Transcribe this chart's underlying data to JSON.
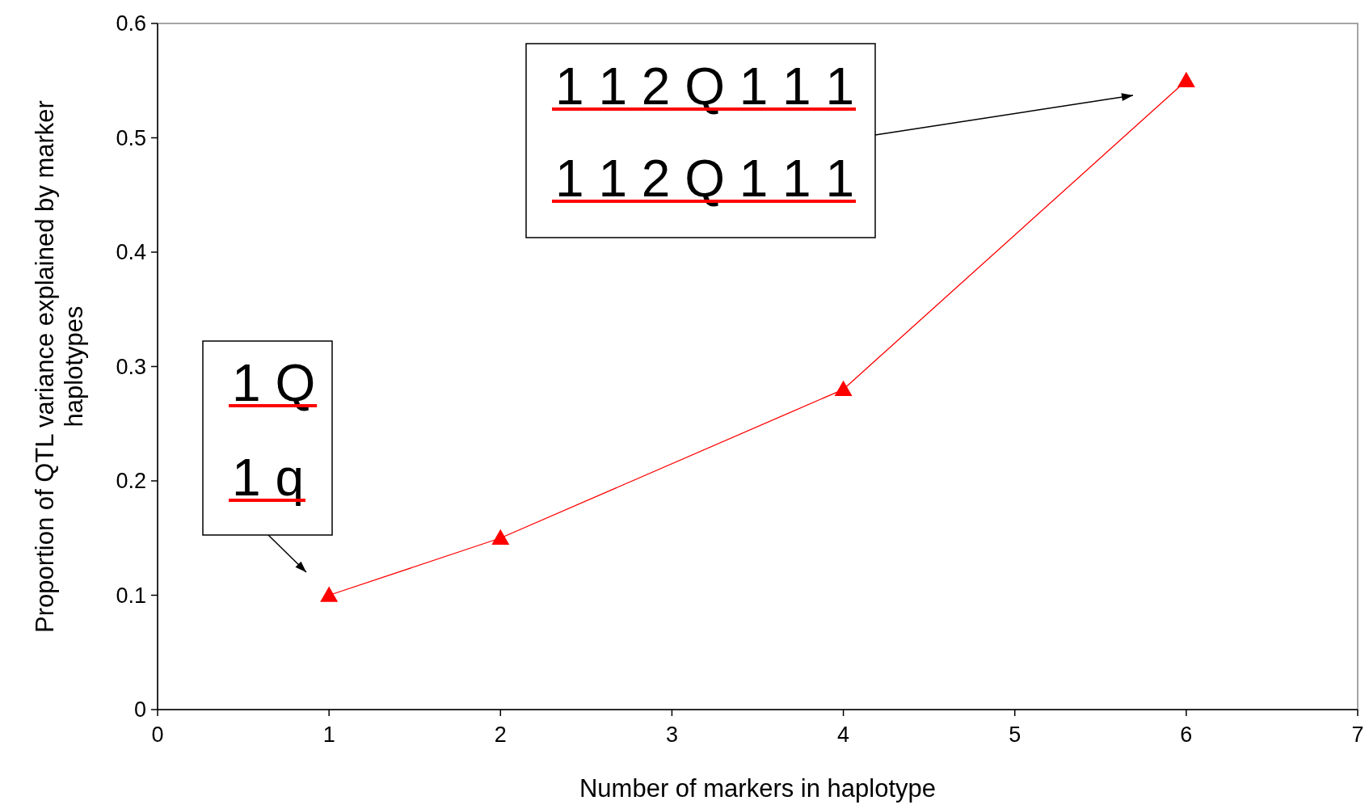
{
  "chart_data": {
    "type": "line",
    "xlabel": "Number of markers in haplotype",
    "ylabel": "Proportion of QTL variance explained by marker haplotypes",
    "x": [
      1,
      2,
      4,
      6
    ],
    "series": [
      {
        "color": "#ff0000",
        "values": [
          0.1,
          0.15,
          0.28,
          0.55
        ]
      }
    ],
    "xlim": [
      0,
      7
    ],
    "xticks": [
      0,
      1,
      2,
      3,
      4,
      5,
      6,
      7
    ],
    "ylim": [
      0,
      0.6
    ],
    "yticks": [
      0,
      {
        "value": 0.1,
        "label": "0.1"
      },
      {
        "value": 0.2,
        "label": "0.2"
      },
      {
        "value": 0.3,
        "label": "0.3"
      },
      {
        "value": 0.4,
        "label": "0.4"
      },
      {
        "value": 0.5,
        "label": "0.5"
      },
      {
        "value": 0.6,
        "label": "0.6"
      }
    ],
    "marker": "triangle",
    "line_style": "solid",
    "grid": false,
    "annotations": [
      "1 1 2 Q 1 1 1\n1 1 2 Q 1 1 1",
      "1 Q\n1 q"
    ]
  }
}
